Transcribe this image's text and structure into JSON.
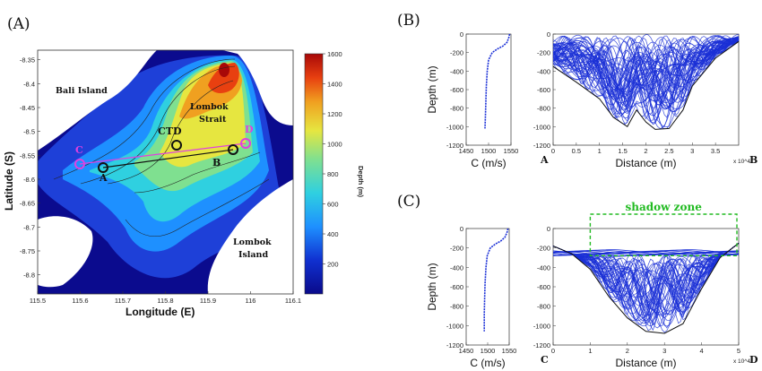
{
  "panel_labels": {
    "a": "(A)",
    "b": "(B)",
    "c": "(C)"
  },
  "colors": {
    "ray": "#1a2fd6",
    "profile": "#1a2fd6",
    "line_ab": "#111111",
    "line_cd": "#e040e0",
    "shadow": "#22bb22",
    "land": "#ffffff",
    "colorbar": [
      "#0a0a8a",
      "#1030d0",
      "#1e90ff",
      "#2fd0e0",
      "#7fe090",
      "#e6e640",
      "#f0a020",
      "#e84010",
      "#a80808"
    ]
  },
  "chart_data": [
    {
      "id": "A",
      "type": "heatmap",
      "title": "",
      "xlabel": "Longitude (E)",
      "ylabel": "Latitude (S)",
      "xlim": [
        115.5,
        116.1
      ],
      "ylim": [
        -8.84,
        -8.33
      ],
      "x_ticks": [
        "115.5",
        "115.6",
        "115.7",
        "115.8",
        "115.9",
        "116",
        "116.1"
      ],
      "y_ticks": [
        "-8.35",
        "-8.4",
        "-8.45",
        "-8.5",
        "-8.55",
        "-8.6",
        "-8.65",
        "-8.7",
        "-8.75",
        "-8.8"
      ],
      "colorbar": {
        "label": "Depth (m)",
        "range": [
          0,
          1600
        ],
        "ticks": [
          "200",
          "400",
          "600",
          "800",
          "1000",
          "1200",
          "1400",
          "1600"
        ]
      },
      "annotations": [
        "Bali Island",
        "Lombok Strait",
        "Lombok Island",
        "CTD"
      ],
      "points": [
        {
          "name": "A",
          "lon": 115.6,
          "lat": -8.58
        },
        {
          "name": "B",
          "lon": 115.96,
          "lat": -8.54
        },
        {
          "name": "C",
          "lon": 115.54,
          "lat": -8.565
        },
        {
          "name": "D",
          "lon": 115.99,
          "lat": -8.53
        },
        {
          "name": "CTD",
          "lon": 115.81,
          "lat": -8.53
        }
      ]
    },
    {
      "id": "B-profile",
      "type": "line",
      "xlabel": "C (m/s)",
      "ylabel": "Depth (m)",
      "xlim": [
        1450,
        1550
      ],
      "ylim": [
        1200,
        0
      ],
      "x_ticks": [
        "1450",
        "1500",
        "1550"
      ],
      "y_ticks": [
        "0",
        "-200",
        "-400",
        "-600",
        "-800",
        "-1000",
        "-1200"
      ],
      "series": [
        {
          "x": [
            1547,
            1545,
            1541,
            1532,
            1520,
            1508,
            1500,
            1497,
            1495,
            1494,
            1493,
            1492
          ],
          "y": [
            0,
            40,
            90,
            130,
            160,
            200,
            280,
            400,
            560,
            720,
            880,
            1020
          ]
        }
      ]
    },
    {
      "id": "B-rays",
      "type": "line",
      "xlabel": "Distance (m)",
      "ylabel": "",
      "xlim": [
        0,
        4
      ],
      "ylim": [
        1200,
        0
      ],
      "x_exponent": "x 10^4",
      "x_ticks": [
        "0",
        "0.5",
        "1",
        "1.5",
        "2",
        "2.5",
        "3",
        "3.5"
      ],
      "y_ticks": [
        "0",
        "-200",
        "-400",
        "-600",
        "-800",
        "-1000",
        "-1200"
      ],
      "endpoints": {
        "left": "A",
        "right": "B"
      },
      "bathymetry": {
        "x": [
          0,
          0.5,
          1,
          1.3,
          1.6,
          1.8,
          2.0,
          2.2,
          2.5,
          2.8,
          3.0,
          3.5,
          4.0
        ],
        "y": [
          350,
          520,
          700,
          900,
          1000,
          820,
          950,
          1030,
          1020,
          820,
          560,
          260,
          80
        ]
      }
    },
    {
      "id": "C-profile",
      "type": "line",
      "xlabel": "C (m/s)",
      "ylabel": "Depth (m)",
      "xlim": [
        1450,
        1550
      ],
      "ylim": [
        1200,
        0
      ],
      "x_ticks": [
        "1450",
        "1500",
        "1550"
      ],
      "y_ticks": [
        "0",
        "-200",
        "-400",
        "-600",
        "-800",
        "-1000",
        "-1200"
      ],
      "series": [
        {
          "x": [
            1547,
            1545,
            1540,
            1530,
            1518,
            1506,
            1499,
            1496,
            1494,
            1493,
            1492,
            1492
          ],
          "y": [
            0,
            40,
            90,
            130,
            160,
            200,
            280,
            400,
            560,
            720,
            880,
            1060
          ]
        }
      ]
    },
    {
      "id": "C-rays",
      "type": "line",
      "xlabel": "Distance (m)",
      "ylabel": "",
      "xlim": [
        0,
        5
      ],
      "ylim": [
        1200,
        0
      ],
      "x_exponent": "x 10^4",
      "x_ticks": [
        "0",
        "1",
        "2",
        "3",
        "4",
        "5"
      ],
      "y_ticks": [
        "0",
        "-200",
        "-400",
        "-600",
        "-800",
        "-1000",
        "-1200"
      ],
      "endpoints": {
        "left": "C",
        "right": "D"
      },
      "annotation": "shadow zone",
      "bathymetry": {
        "x": [
          0,
          0.5,
          1,
          1.5,
          2,
          2.5,
          3,
          3.5,
          4,
          4.5,
          5
        ],
        "y": [
          180,
          260,
          420,
          700,
          920,
          1060,
          1080,
          980,
          620,
          300,
          150
        ]
      }
    }
  ]
}
